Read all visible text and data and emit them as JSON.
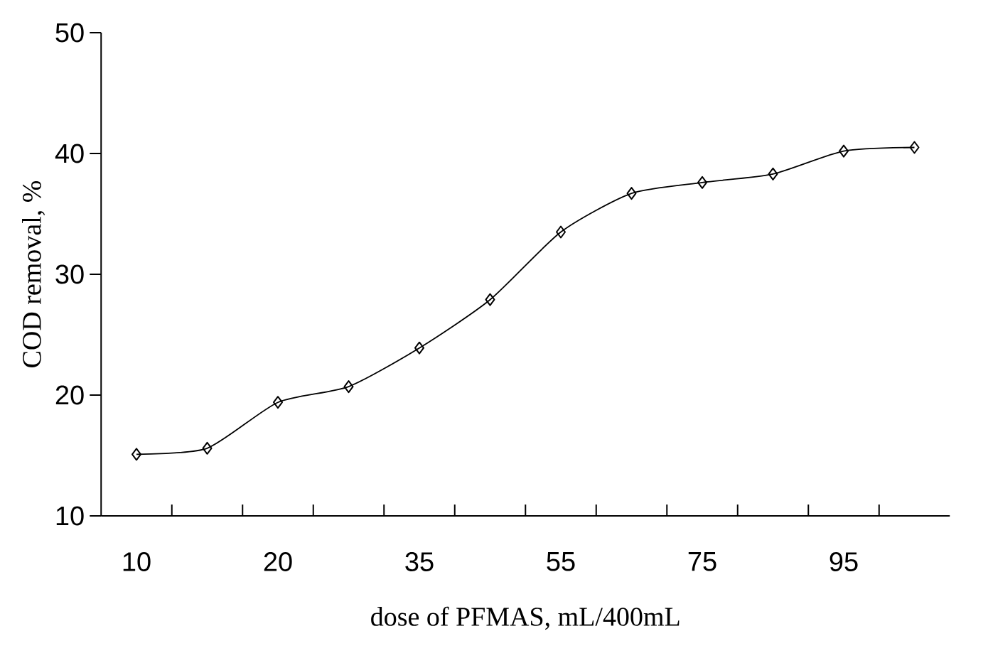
{
  "chart_data": {
    "type": "line",
    "xlabel": "dose of PFMAS, mL/400mL",
    "ylabel": "COD  removal, %",
    "categories": [
      "10",
      null,
      "20",
      null,
      "35",
      null,
      "55",
      null,
      "75",
      null,
      "95",
      null
    ],
    "series": [
      {
        "color": "#000000",
        "values": [
          15.1,
          15.6,
          19.4,
          20.7,
          23.9,
          27.9,
          33.5,
          36.7,
          37.6,
          38.3,
          40.2,
          40.5
        ]
      }
    ],
    "ylim": [
      10,
      50
    ],
    "yticks": [
      10,
      20,
      30,
      40,
      50
    ],
    "grid": false,
    "marker": "diamond",
    "line_style": "solid"
  }
}
